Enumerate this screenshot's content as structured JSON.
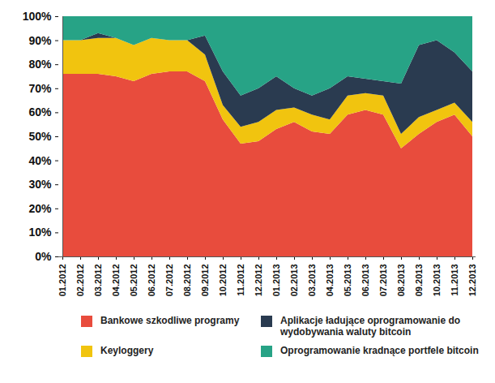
{
  "chart_data": {
    "type": "area",
    "stacked": true,
    "categories": [
      "01.2012",
      "02.2012",
      "03.2012",
      "04.2012",
      "05.2012",
      "06.2012",
      "07.2012",
      "08.2012",
      "09.2012",
      "10.2012",
      "11.2012",
      "12.2012",
      "01.2013",
      "02.2013",
      "03.2013",
      "04.2013",
      "05.2013",
      "06.2013",
      "07.2013",
      "08.2013",
      "09.2013",
      "10.2013",
      "11.2013",
      "12.2013"
    ],
    "series": [
      {
        "name": "Bankowe szkodliwe programy",
        "color": "#e84c3d",
        "values": [
          76,
          76,
          76,
          75,
          73,
          76,
          77,
          77,
          73,
          57,
          47,
          48,
          53,
          56,
          52,
          51,
          59,
          61,
          59,
          45,
          51,
          56,
          59,
          50
        ]
      },
      {
        "name": "Keyloggery",
        "color": "#f1c40f",
        "values": [
          14,
          14,
          15,
          16,
          15,
          15,
          13,
          13,
          11,
          6,
          7,
          8,
          8,
          6,
          7,
          6,
          8,
          7,
          8,
          6,
          7,
          5,
          5,
          6
        ]
      },
      {
        "name": "Aplikacje ładujące oprogramowanie do wydobywania waluty bitcoin",
        "color": "#2a3b50",
        "values": [
          0,
          0,
          2,
          0,
          0,
          0,
          0,
          0,
          8,
          14,
          13,
          14,
          14,
          8,
          8,
          13,
          8,
          6,
          6,
          21,
          30,
          29,
          21,
          21
        ]
      },
      {
        "name": "Oprogramowanie kradnące portfele bitcoin",
        "color": "#27a386",
        "values": [
          10,
          10,
          7,
          9,
          12,
          9,
          10,
          10,
          8,
          23,
          33,
          30,
          25,
          30,
          33,
          30,
          25,
          26,
          27,
          28,
          12,
          10,
          15,
          23
        ]
      }
    ],
    "ylim": [
      0,
      100
    ],
    "yticks": [
      {
        "value": 0,
        "label": "0%"
      },
      {
        "value": 10,
        "label": "10%"
      },
      {
        "value": 20,
        "label": "20%"
      },
      {
        "value": 30,
        "label": "30%"
      },
      {
        "value": 40,
        "label": "40%"
      },
      {
        "value": 50,
        "label": "50%"
      },
      {
        "value": 60,
        "label": "60%"
      },
      {
        "value": 70,
        "label": "70%"
      },
      {
        "value": 80,
        "label": "80%"
      },
      {
        "value": 90,
        "label": "90%"
      },
      {
        "value": 100,
        "label": "100%"
      }
    ],
    "grid": false,
    "legend": "bottom"
  }
}
